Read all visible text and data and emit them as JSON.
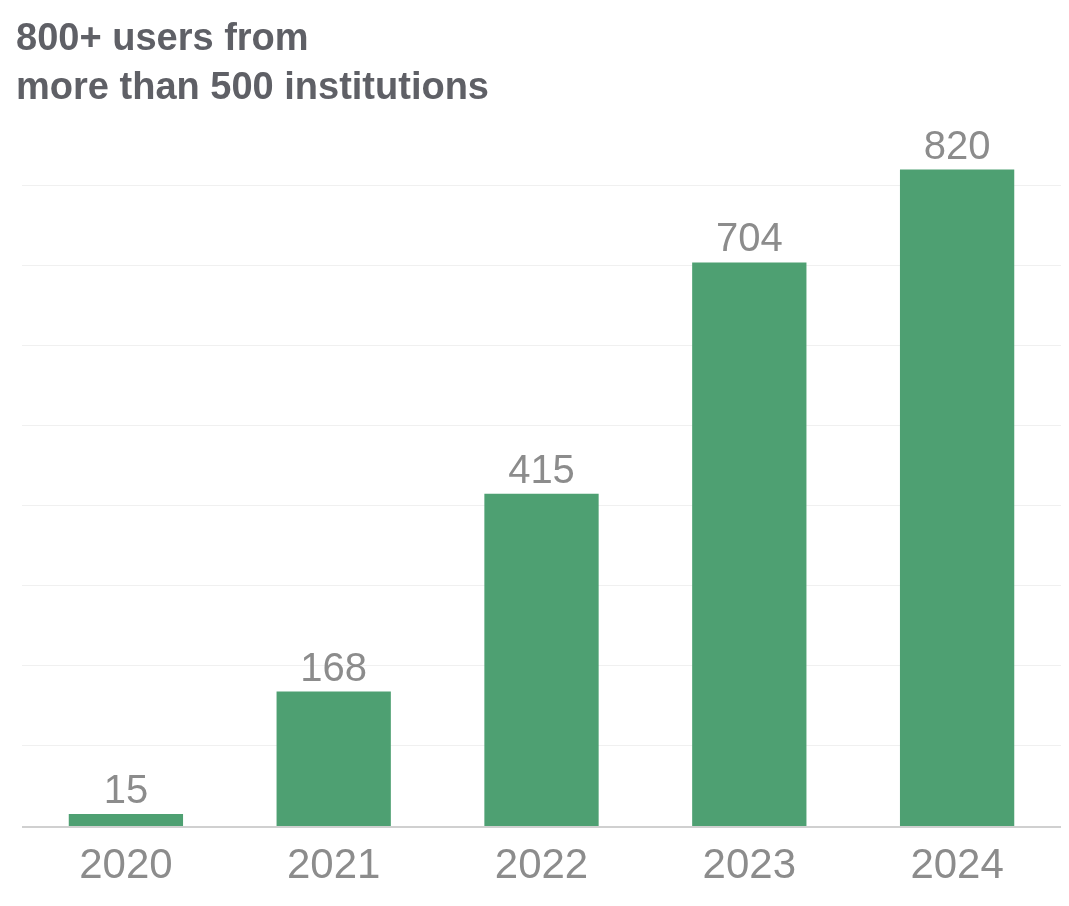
{
  "chart_data": {
    "type": "bar",
    "title": "800+ users from\nmore than 500 institutions",
    "categories": [
      "2020",
      "2021",
      "2022",
      "2023",
      "2024"
    ],
    "values": [
      15,
      168,
      415,
      704,
      820
    ],
    "color": "#4ea072",
    "yticks": [
      {
        "value": 0,
        "label": null
      },
      {
        "value": 100,
        "label": null
      },
      {
        "value": 200,
        "label": null
      },
      {
        "value": 300,
        "label": null
      },
      {
        "value": 400,
        "label": null
      },
      {
        "value": 500,
        "label": null
      },
      {
        "value": 600,
        "label": null
      },
      {
        "value": 700,
        "label": null
      },
      {
        "value": 800,
        "label": null
      }
    ],
    "grid": "y",
    "tick_labels": "x",
    "data_labels": true,
    "legend": false
  }
}
